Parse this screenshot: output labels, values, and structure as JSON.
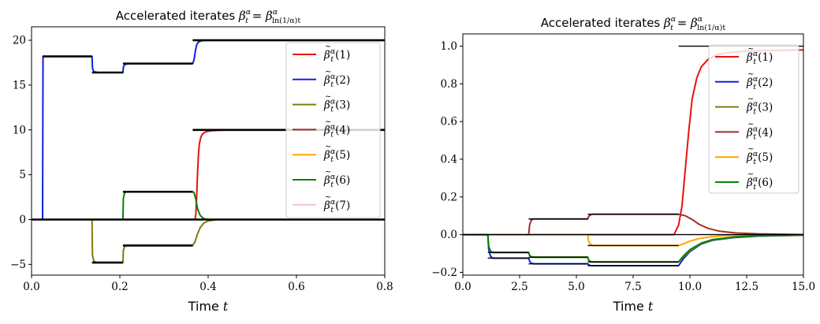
{
  "chart_data": [
    {
      "type": "line",
      "title": "Accelerated iterates β̃_t^α = β^α_{ln(1/α)t}",
      "title_parts": {
        "main": "Accelerated iterates ",
        "beta": "β",
        "t": "t",
        "alpha": "α",
        "subscript": "ln(1/α)t"
      },
      "xlabel": "Time t",
      "xlabel_parts": {
        "word": "Time ",
        "var": "t"
      },
      "xlim": [
        0.0,
        0.8
      ],
      "ylim": [
        -6.2,
        21.5
      ],
      "xticks": [
        0.0,
        0.2,
        0.4,
        0.6,
        0.8
      ],
      "xtick_labels": [
        "0.0",
        "0.2",
        "0.4",
        "0.6",
        "0.8"
      ],
      "yticks": [
        -5,
        0,
        5,
        10,
        15,
        20
      ],
      "ytick_labels": [
        "−5",
        "0",
        "5",
        "10",
        "15",
        "20"
      ],
      "legend_position": "top-right",
      "reference_segments": [
        {
          "x": [
            0.0,
            0.8
          ],
          "y": [
            0,
            0
          ]
        },
        {
          "x": [
            0.025,
            0.137
          ],
          "y": [
            18.2,
            18.2
          ]
        },
        {
          "x": [
            0.137,
            0.207
          ],
          "y": [
            16.4,
            16.4
          ]
        },
        {
          "x": [
            0.207,
            0.365
          ],
          "y": [
            17.4,
            17.4
          ]
        },
        {
          "x": [
            0.365,
            0.8
          ],
          "y": [
            20.0,
            20.0
          ]
        },
        {
          "x": [
            0.365,
            0.8
          ],
          "y": [
            10.0,
            10.0
          ]
        },
        {
          "x": [
            0.207,
            0.365
          ],
          "y": [
            3.1,
            3.1
          ]
        },
        {
          "x": [
            0.137,
            0.207
          ],
          "y": [
            -4.8,
            -4.8
          ]
        },
        {
          "x": [
            0.207,
            0.365
          ],
          "y": [
            -2.9,
            -2.9
          ]
        }
      ],
      "series": [
        {
          "name": "β̃_t^α(1)",
          "index": "1",
          "color": "#e8110f",
          "x": [
            0,
            0.37,
            0.372,
            0.374,
            0.376,
            0.378,
            0.38,
            0.383,
            0.386,
            0.39,
            0.395,
            0.4,
            0.41,
            0.42,
            0.44,
            0.5,
            0.8
          ],
          "y": [
            0,
            0,
            0.5,
            2.5,
            5.2,
            7.2,
            8.4,
            9.1,
            9.45,
            9.65,
            9.78,
            9.85,
            9.92,
            9.95,
            9.98,
            10.0,
            10.0
          ]
        },
        {
          "name": "β̃_t^α(2)",
          "index": "2",
          "color": "#1020e0",
          "x": [
            0,
            0.025,
            0.026,
            0.137,
            0.138,
            0.141,
            0.15,
            0.155,
            0.207,
            0.208,
            0.211,
            0.22,
            0.24,
            0.3,
            0.365,
            0.368,
            0.371,
            0.374,
            0.378,
            0.385,
            0.4,
            0.8
          ],
          "y": [
            0,
            0,
            18.2,
            18.2,
            16.9,
            16.5,
            16.4,
            16.4,
            16.4,
            17.0,
            17.3,
            17.4,
            17.4,
            17.4,
            17.4,
            17.8,
            18.8,
            19.5,
            19.8,
            19.95,
            20.0,
            20.0
          ]
        },
        {
          "name": "β̃_t^α(3)",
          "index": "3",
          "color": "#7f7d0a",
          "x": [
            0,
            0.137,
            0.138,
            0.141,
            0.146,
            0.207,
            0.208,
            0.211,
            0.216,
            0.365,
            0.37,
            0.376,
            0.382,
            0.39,
            0.4,
            0.42,
            0.8
          ],
          "y": [
            0,
            0,
            -4.0,
            -4.6,
            -4.8,
            -4.8,
            -3.4,
            -3.0,
            -2.9,
            -2.9,
            -2.5,
            -1.6,
            -0.9,
            -0.4,
            -0.15,
            0,
            0
          ]
        },
        {
          "name": "β̃_t^α(4)",
          "index": "4",
          "color": "#a52a2a",
          "x": [
            0,
            0.8
          ],
          "y": [
            0,
            0
          ]
        },
        {
          "name": "β̃_t^α(5)",
          "index": "5",
          "color": "#ffa500",
          "x": [
            0,
            0.8
          ],
          "y": [
            0,
            0
          ]
        },
        {
          "name": "β̃_t^α(6)",
          "index": "6",
          "color": "#0a800a",
          "x": [
            0,
            0.207,
            0.208,
            0.211,
            0.216,
            0.365,
            0.368,
            0.372,
            0.376,
            0.382,
            0.39,
            0.4,
            0.8
          ],
          "y": [
            0,
            0,
            2.4,
            3.0,
            3.1,
            3.1,
            3.0,
            2.3,
            1.2,
            0.45,
            0.1,
            0,
            0
          ]
        },
        {
          "name": "β̃_t^α(7)",
          "index": "7",
          "color": "#ffc0cb",
          "x": [
            0,
            0.8
          ],
          "y": [
            0,
            0
          ]
        }
      ]
    },
    {
      "type": "line",
      "title": "Accelerated iterates β̃_t^α = β^α_{ln(1/α)t}",
      "title_parts": {
        "main": "Accelerated iterates ",
        "beta": "β",
        "t": "t",
        "alpha": "α",
        "subscript": "ln(1/α)t"
      },
      "xlabel": "Time t",
      "xlabel_parts": {
        "word": "Time ",
        "var": "t"
      },
      "xlim": [
        0.0,
        15.0
      ],
      "ylim": [
        -0.215,
        1.065
      ],
      "xticks": [
        0.0,
        2.5,
        5.0,
        7.5,
        10.0,
        12.5,
        15.0
      ],
      "xtick_labels": [
        "0.0",
        "2.5",
        "5.0",
        "7.5",
        "10.0",
        "12.5",
        "15.0"
      ],
      "yticks": [
        -0.2,
        0.0,
        0.2,
        0.4,
        0.6,
        0.8,
        1.0
      ],
      "ytick_labels": [
        "−0.2",
        "0.0",
        "0.2",
        "0.4",
        "0.6",
        "0.8",
        "1.0"
      ],
      "legend_position": "top-right",
      "reference_segments": [
        {
          "x": [
            0.0,
            15.0
          ],
          "y": [
            0,
            0
          ]
        },
        {
          "x": [
            9.5,
            15.0
          ],
          "y": [
            1.0,
            1.0
          ]
        },
        {
          "x": [
            1.1,
            2.9
          ],
          "y": [
            -0.125,
            -0.125
          ]
        },
        {
          "x": [
            2.9,
            5.5
          ],
          "y": [
            -0.155,
            -0.155
          ]
        },
        {
          "x": [
            5.5,
            9.5
          ],
          "y": [
            -0.165,
            -0.165
          ]
        },
        {
          "x": [
            1.1,
            2.9
          ],
          "y": [
            -0.095,
            -0.095
          ]
        },
        {
          "x": [
            2.9,
            5.5
          ],
          "y": [
            -0.12,
            -0.12
          ]
        },
        {
          "x": [
            5.5,
            9.5
          ],
          "y": [
            -0.145,
            -0.145
          ]
        },
        {
          "x": [
            2.9,
            5.5
          ],
          "y": [
            0.083,
            0.083
          ]
        },
        {
          "x": [
            5.5,
            9.5
          ],
          "y": [
            0.108,
            0.108
          ]
        },
        {
          "x": [
            5.5,
            9.5
          ],
          "y": [
            -0.058,
            -0.058
          ]
        }
      ],
      "series": [
        {
          "name": "β̃_t^α(1)",
          "index": "1",
          "color": "#e8110f",
          "x": [
            0,
            9.3,
            9.5,
            9.65,
            9.8,
            9.95,
            10.1,
            10.3,
            10.5,
            10.8,
            11.2,
            11.8,
            12.5,
            13.5,
            15.0
          ],
          "y": [
            0,
            0,
            0.05,
            0.15,
            0.35,
            0.55,
            0.72,
            0.83,
            0.89,
            0.93,
            0.955,
            0.967,
            0.973,
            0.977,
            0.98
          ]
        },
        {
          "name": "β̃_t^α(2)",
          "index": "2",
          "color": "#1020e0",
          "x": [
            0,
            1.1,
            1.14,
            1.22,
            1.32,
            2.9,
            2.94,
            3.02,
            3.12,
            5.5,
            5.54,
            5.62,
            5.72,
            9.5,
            9.7,
            10.0,
            10.5,
            11.0,
            12.0,
            13.0,
            15.0
          ],
          "y": [
            0,
            0,
            -0.08,
            -0.115,
            -0.125,
            -0.125,
            -0.14,
            -0.152,
            -0.155,
            -0.155,
            -0.16,
            -0.164,
            -0.165,
            -0.165,
            -0.13,
            -0.09,
            -0.05,
            -0.03,
            -0.015,
            -0.008,
            -0.003
          ]
        },
        {
          "name": "β̃_t^α(3)",
          "index": "3",
          "color": "#7f7d0a",
          "x": [
            0,
            1.1,
            1.14,
            1.22,
            1.32,
            2.9,
            2.94,
            3.02,
            3.12,
            5.5,
            5.54,
            5.62,
            5.72,
            9.5,
            9.7,
            10.0,
            10.5,
            11.0,
            12.0,
            13.0,
            15.0
          ],
          "y": [
            0,
            0,
            -0.06,
            -0.088,
            -0.095,
            -0.095,
            -0.11,
            -0.118,
            -0.12,
            -0.12,
            -0.135,
            -0.143,
            -0.145,
            -0.145,
            -0.12,
            -0.085,
            -0.048,
            -0.028,
            -0.013,
            -0.007,
            -0.003
          ]
        },
        {
          "name": "β̃_t^α(4)",
          "index": "4",
          "color": "#a52a2a",
          "x": [
            0,
            2.9,
            2.94,
            3.02,
            3.12,
            5.5,
            5.54,
            5.62,
            5.72,
            9.5,
            9.8,
            10.1,
            10.4,
            10.8,
            11.3,
            12.0,
            13.0,
            15.0
          ],
          "y": [
            0,
            0,
            0.05,
            0.078,
            0.083,
            0.083,
            0.096,
            0.105,
            0.108,
            0.108,
            0.1,
            0.08,
            0.055,
            0.033,
            0.018,
            0.009,
            0.004,
            0.001
          ]
        },
        {
          "name": "β̃_t^α(5)",
          "index": "5",
          "color": "#ffa500",
          "x": [
            0,
            5.5,
            5.54,
            5.62,
            5.72,
            9.5,
            9.7,
            10.0,
            10.4,
            10.9,
            11.5,
            12.5,
            13.5,
            15.0
          ],
          "y": [
            0,
            0,
            -0.035,
            -0.053,
            -0.058,
            -0.058,
            -0.05,
            -0.035,
            -0.021,
            -0.012,
            -0.006,
            -0.003,
            -0.001,
            0
          ]
        },
        {
          "name": "β̃_t^α(6)",
          "index": "6",
          "color": "#0a800a",
          "x": [
            0,
            1.1,
            1.14,
            1.22,
            1.32,
            2.9,
            2.94,
            3.02,
            3.12,
            5.5,
            5.54,
            5.62,
            5.72,
            9.5,
            9.7,
            10.0,
            10.5,
            11.0,
            12.0,
            13.0,
            15.0
          ],
          "y": [
            0,
            0,
            -0.065,
            -0.09,
            -0.095,
            -0.095,
            -0.11,
            -0.118,
            -0.12,
            -0.12,
            -0.135,
            -0.143,
            -0.145,
            -0.145,
            -0.115,
            -0.08,
            -0.045,
            -0.026,
            -0.012,
            -0.006,
            -0.002
          ]
        }
      ]
    }
  ]
}
